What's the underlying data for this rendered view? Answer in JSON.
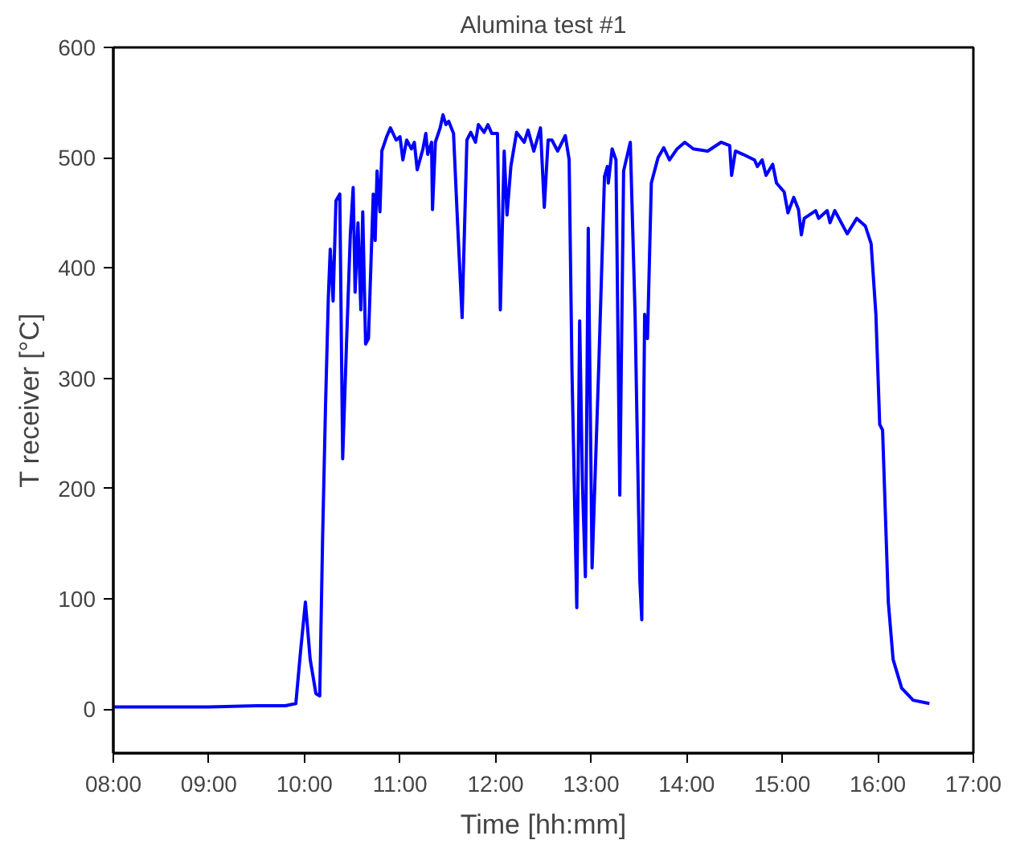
{
  "chart_data": {
    "type": "line",
    "title": "Alumina test #1",
    "xlabel": "Time [hh:mm]",
    "ylabel": "T receiver [°C]",
    "xlim": [
      8,
      17
    ],
    "ylim": [
      -40,
      600
    ],
    "xticks": [
      {
        "value": 8,
        "label": "08:00"
      },
      {
        "value": 9,
        "label": "09:00"
      },
      {
        "value": 10,
        "label": "10:00"
      },
      {
        "value": 11,
        "label": "11:00"
      },
      {
        "value": 12,
        "label": "12:00"
      },
      {
        "value": 13,
        "label": "13:00"
      },
      {
        "value": 14,
        "label": "14:00"
      },
      {
        "value": 15,
        "label": "15:00"
      },
      {
        "value": 16,
        "label": "16:00"
      },
      {
        "value": 17,
        "label": "17:00"
      }
    ],
    "yticks": [
      0,
      100,
      200,
      300,
      400,
      500,
      600
    ],
    "grid": false,
    "marker": "none",
    "line_style": "solid",
    "series": [
      {
        "color": "#0000ff",
        "x": [
          8.0,
          9.0,
          9.5,
          9.8,
          9.91,
          9.96,
          10.01,
          10.06,
          10.12,
          10.16,
          10.19,
          10.22,
          10.25,
          10.27,
          10.3,
          10.33,
          10.37,
          10.4,
          10.44,
          10.48,
          10.51,
          10.53,
          10.56,
          10.59,
          10.61,
          10.64,
          10.67,
          10.72,
          10.74,
          10.76,
          10.79,
          10.81,
          10.86,
          10.9,
          10.96,
          11.0,
          11.03,
          11.07,
          11.12,
          11.15,
          11.18,
          11.24,
          11.27,
          11.29,
          11.33,
          11.34,
          11.37,
          11.42,
          11.45,
          11.48,
          11.51,
          11.56,
          11.6,
          11.65,
          11.7,
          11.74,
          11.79,
          11.82,
          11.88,
          11.92,
          11.96,
          12.02,
          12.05,
          12.09,
          12.12,
          12.16,
          12.22,
          12.3,
          12.34,
          12.4,
          12.47,
          12.51,
          12.55,
          12.59,
          12.65,
          12.73,
          12.77,
          12.8,
          12.85,
          12.88,
          12.91,
          12.94,
          12.97,
          13.01,
          13.08,
          13.14,
          13.17,
          13.18,
          13.22,
          13.26,
          13.3,
          13.34,
          13.41,
          13.46,
          13.51,
          13.53,
          13.56,
          13.59,
          13.63,
          13.7,
          13.76,
          13.82,
          13.9,
          13.98,
          14.07,
          14.22,
          14.36,
          14.45,
          14.47,
          14.51,
          14.59,
          14.71,
          14.74,
          14.79,
          14.83,
          14.9,
          14.94,
          15.02,
          15.06,
          15.12,
          15.17,
          15.2,
          15.23,
          15.35,
          15.38,
          15.47,
          15.5,
          15.55,
          15.68,
          15.78,
          15.87,
          15.93,
          15.98,
          16.02,
          16.05,
          16.11,
          16.16,
          16.25,
          16.37,
          16.54
        ],
        "values": [
          2,
          2,
          3,
          3,
          5,
          53,
          97,
          45,
          14,
          12,
          155,
          273,
          373,
          417,
          370,
          461,
          467,
          227,
          331,
          430,
          473,
          378,
          441,
          362,
          451,
          331,
          336,
          467,
          425,
          488,
          451,
          506,
          519,
          527,
          516,
          519,
          498,
          516,
          508,
          514,
          489,
          508,
          522,
          503,
          514,
          453,
          514,
          527,
          539,
          530,
          533,
          522,
          445,
          355,
          516,
          523,
          514,
          530,
          523,
          530,
          522,
          522,
          362,
          506,
          448,
          492,
          523,
          514,
          525,
          506,
          527,
          455,
          516,
          516,
          506,
          520,
          498,
          305,
          92,
          352,
          202,
          120,
          436,
          128,
          311,
          483,
          492,
          477,
          508,
          498,
          194,
          488,
          514,
          358,
          116,
          81,
          358,
          336,
          477,
          500,
          509,
          498,
          508,
          514,
          508,
          506,
          514,
          511,
          484,
          506,
          503,
          498,
          492,
          498,
          484,
          494,
          477,
          469,
          450,
          464,
          453,
          430,
          445,
          452,
          445,
          452,
          441,
          452,
          431,
          445,
          438,
          422,
          358,
          258,
          253,
          97,
          45,
          19,
          8,
          5
        ]
      }
    ]
  }
}
